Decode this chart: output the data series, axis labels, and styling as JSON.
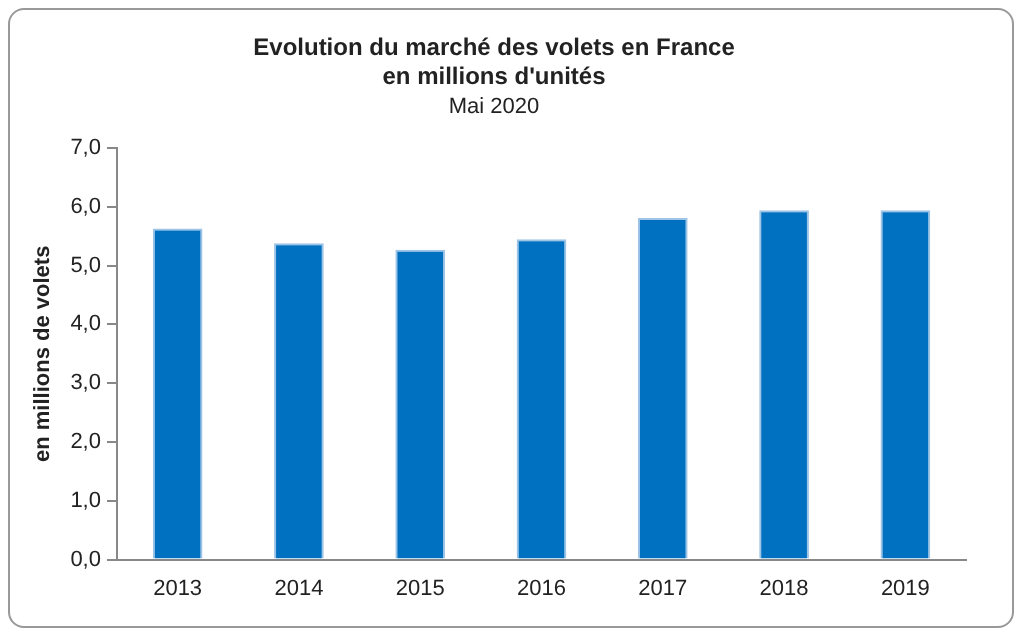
{
  "chart_data": {
    "type": "bar",
    "title": "Evolution du marché des volets en France\nen millions d'unités",
    "subtitle": "Mai 2020",
    "ylabel": "en millions de volets",
    "categories": [
      "2013",
      "2014",
      "2015",
      "2016",
      "2017",
      "2018",
      "2019"
    ],
    "values": [
      5.63,
      5.38,
      5.27,
      5.45,
      5.81,
      5.94,
      5.94
    ],
    "color": "#0070c0",
    "ylim": [
      0,
      7
    ],
    "yticks": [
      {
        "value": 0,
        "label": "0,0"
      },
      {
        "value": 1,
        "label": "1,0"
      },
      {
        "value": 2,
        "label": "2,0"
      },
      {
        "value": 3,
        "label": "3,0"
      },
      {
        "value": 4,
        "label": "4,0"
      },
      {
        "value": 5,
        "label": "5,0"
      },
      {
        "value": 6,
        "label": "6,0"
      },
      {
        "value": 7,
        "label": "7,0"
      }
    ],
    "grid": false,
    "legend": false
  }
}
